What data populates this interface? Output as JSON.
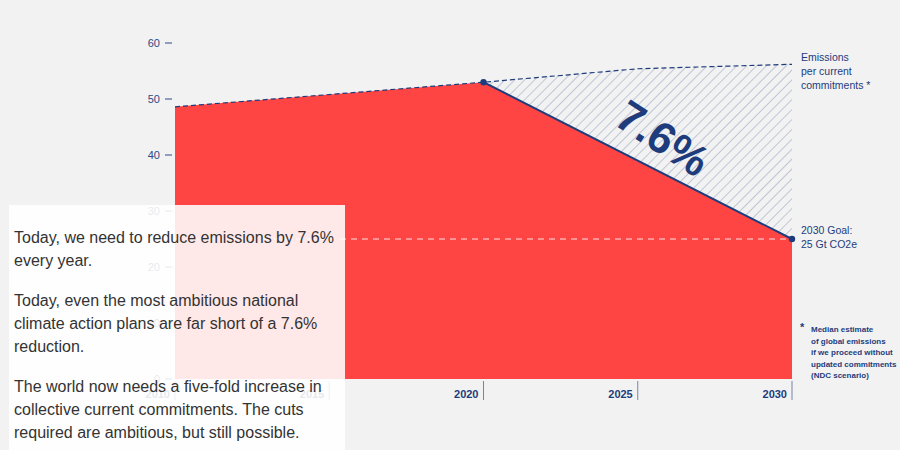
{
  "chart_data": {
    "type": "area",
    "xlim": [
      2010,
      2030
    ],
    "xticks": [
      2010,
      2015,
      2020,
      2025,
      2030
    ],
    "ylim": [
      0,
      60
    ],
    "yticks": [
      0,
      10,
      20,
      30,
      40,
      50,
      60
    ],
    "grid": false,
    "series": [
      {
        "type": "area",
        "color": "#ff4444",
        "x": [
          2010,
          2020,
          2030
        ],
        "values": [
          48.6,
          53,
          25
        ]
      },
      {
        "type": "line",
        "color": "#1e3c7b",
        "line_style": "dashed",
        "x": [
          2010,
          2020,
          2025,
          2030
        ],
        "values": [
          48.6,
          53,
          55.4,
          56.2
        ]
      },
      {
        "type": "line",
        "color": "#1e3c7b",
        "line_style": "solid",
        "marker": "circle",
        "x": [
          2020,
          2030
        ],
        "values": [
          53,
          25
        ]
      }
    ],
    "goal": 25,
    "annotations": {
      "hatch_label": "7.6%",
      "ndc_label": [
        "Emissions",
        "per current",
        "commitments *"
      ],
      "goal_label": [
        "2030 Goal:",
        "25 Gt CO2e"
      ],
      "footnote_mark": "*",
      "footnote": [
        "Median estimate",
        "of global emissions",
        "if we proceed without",
        "updated commitments",
        "(NDC scenario)"
      ]
    }
  },
  "text_panel": [
    "Today, we need to reduce emissions by 7.6% every year.",
    "Today, even the most ambitious national climate action plans are far short of a 7.6% reduction.",
    "The world now needs a five-fold increase in collective current commitments. The cuts required are ambitious, but still possible."
  ]
}
